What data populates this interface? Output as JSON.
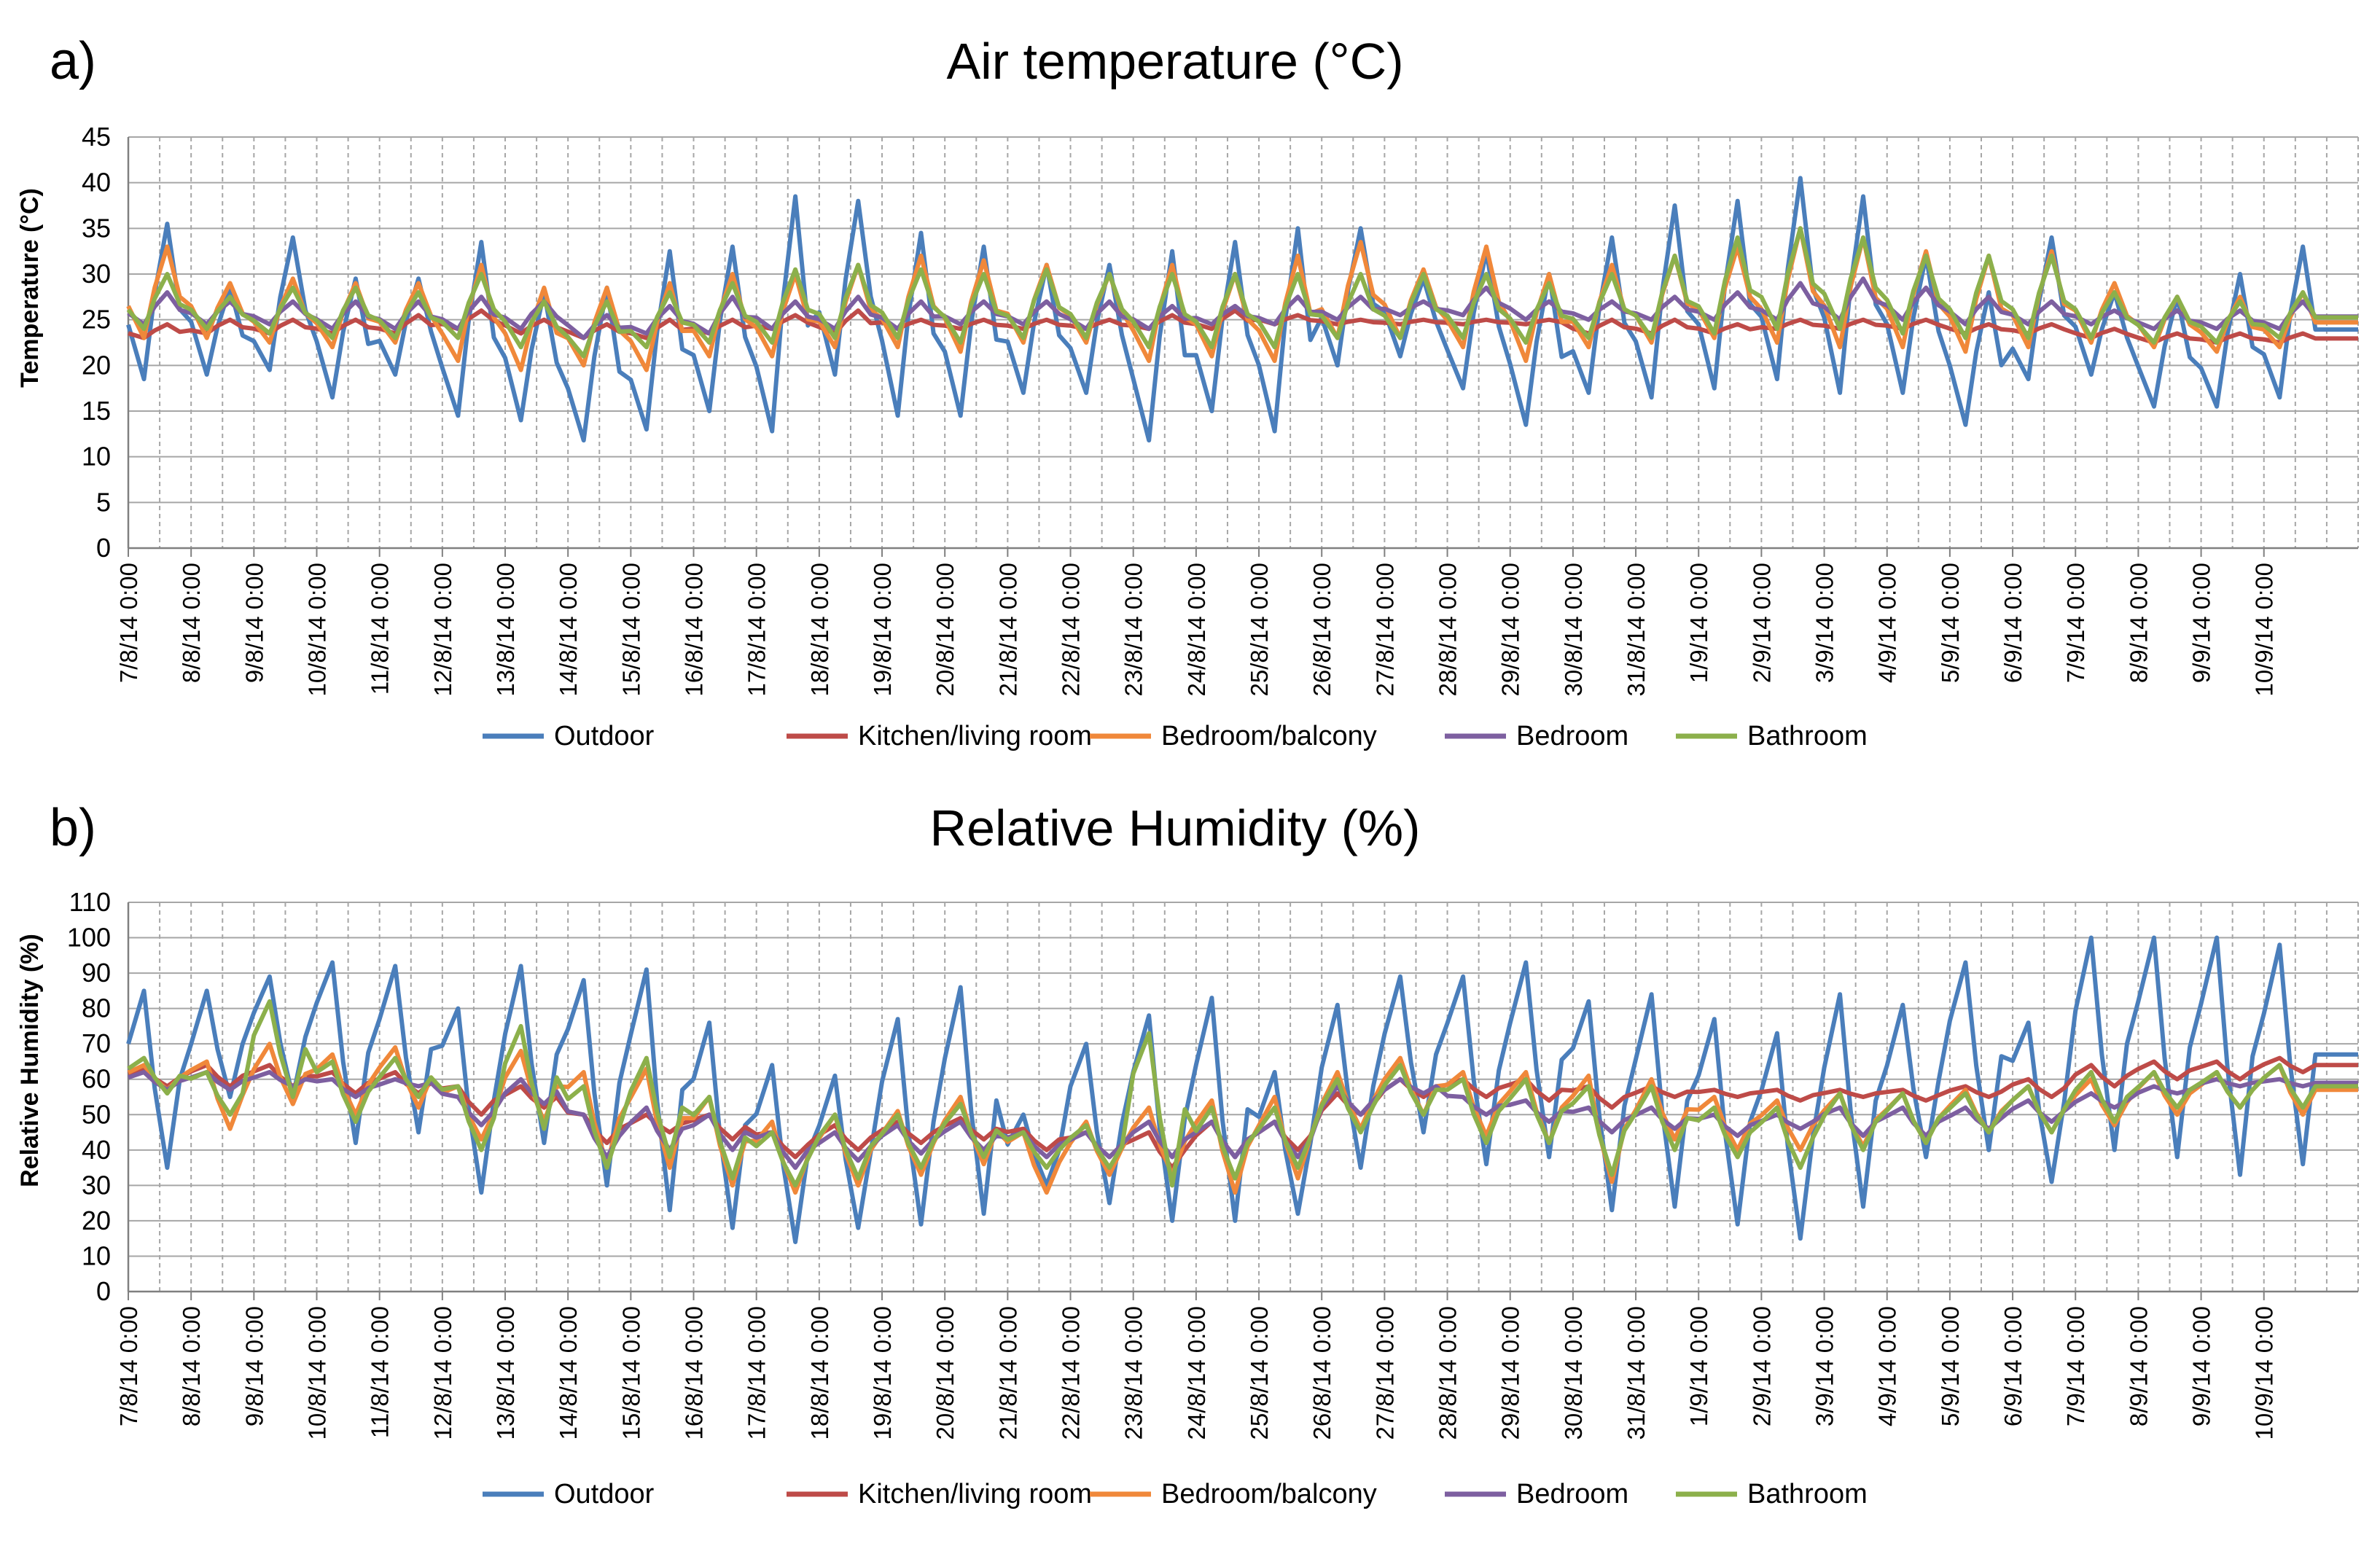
{
  "dates": [
    "7/8/14 0:00",
    "8/8/14 0:00",
    "9/8/14 0:00",
    "10/8/14 0:00",
    "11/8/14 0:00",
    "12/8/14 0:00",
    "13/8/14 0:00",
    "14/8/14 0:00",
    "15/8/14 0:00",
    "16/8/14 0:00",
    "17/8/14 0:00",
    "18/8/14 0:00",
    "19/8/14 0:00",
    "20/8/14 0:00",
    "21/8/14 0:00",
    "22/8/14 0:00",
    "23/8/14 0:00",
    "24/8/14 0:00",
    "25/8/14 0:00",
    "26/8/14 0:00",
    "27/8/14 0:00",
    "28/8/14 0:00",
    "29/8/14 0:00",
    "30/8/14 0:00",
    "31/8/14 0:00",
    "1/9/14 0:00",
    "2/9/14 0:00",
    "3/9/14 0:00",
    "4/9/14 0:00",
    "5/9/14 0:00",
    "6/9/14 0:00",
    "7/9/14 0:00",
    "8/9/14 0:00",
    "9/9/14 0:00",
    "10/9/14 0:00"
  ],
  "colors": {
    "Outdoor": "#4a7ebb",
    "Kitchen/living room": "#be4b48",
    "Bedroom/balcony": "#f0883a",
    "Bedroom": "#7d5fa0",
    "Bathroom": "#8cb04b",
    "grid": "#a6a6a6",
    "axis": "#808080"
  },
  "chart_data": [
    {
      "type": "line",
      "panel_label": "a)",
      "title": "Air temperature (°C)",
      "ylabel": "Temperature (°C)",
      "xlabel": "",
      "ylim": [
        0,
        45
      ],
      "ystep": 5,
      "grid": true,
      "legend": "bottom",
      "x_start": "7/8/14 0:00",
      "x_end": "10/9/14 12:00",
      "series_format": "daily [min, max] of diurnal cycle; min near 06:00, max near 15:00",
      "series": [
        {
          "name": "Outdoor",
          "daily_min": [
            18.5,
            19,
            19.5,
            16.5,
            19,
            14.5,
            14,
            11.8,
            13,
            15,
            12.8,
            19,
            14.5,
            14.5,
            17,
            17,
            11.8,
            15,
            12.8,
            20,
            21,
            17.5,
            13.5,
            17,
            16.5,
            17.5,
            18.5,
            17,
            17,
            13.5,
            18.5,
            19,
            15.5,
            15.5,
            16.5
          ],
          "daily_max": [
            35.5,
            28.5,
            34,
            29.5,
            29.5,
            33.5,
            28,
            28.5,
            32.5,
            33,
            38.5,
            38,
            34.5,
            33,
            31,
            31,
            32.5,
            33.5,
            35,
            35,
            29.5,
            32.5,
            30,
            34,
            37.5,
            38,
            40.5,
            38.5,
            32,
            28,
            34,
            28,
            27.5,
            30,
            33
          ]
        },
        {
          "name": "Kitchen/living room",
          "daily_min": [
            23,
            23.5,
            23.5,
            23.5,
            23.5,
            24,
            23.5,
            23,
            23,
            23.5,
            24,
            23.5,
            24,
            24,
            24,
            24,
            24,
            24,
            24.5,
            24.5,
            24.5,
            24.5,
            24.5,
            23.5,
            23.5,
            23.5,
            24,
            24,
            24,
            23.5,
            23.5,
            23,
            22.5,
            22.5,
            22.5
          ],
          "daily_max": [
            24.5,
            25,
            25,
            25,
            25.5,
            26,
            25,
            24.5,
            25,
            25,
            25.5,
            26,
            25,
            25,
            25,
            25,
            25.5,
            26,
            25.5,
            25,
            25,
            25,
            25,
            25,
            25,
            24.5,
            25,
            25,
            25,
            24.5,
            24.5,
            24,
            23.5,
            23.5,
            23.5
          ]
        },
        {
          "name": "Bedroom/balcony",
          "daily_min": [
            23,
            23,
            22.5,
            22,
            22.5,
            20.5,
            19.5,
            20,
            19.5,
            21,
            21,
            22,
            22,
            21.5,
            22.5,
            22.5,
            20.5,
            21,
            20.5,
            23,
            23,
            22,
            20.5,
            22,
            22.5,
            23,
            22.5,
            22,
            22,
            21.5,
            22,
            22.5,
            22,
            21.5,
            22
          ],
          "daily_max": [
            33,
            29,
            29.5,
            29,
            29,
            31,
            28.5,
            28.5,
            29,
            30,
            30,
            31,
            32,
            31.5,
            31,
            30,
            31,
            30,
            32,
            33.5,
            30.5,
            33,
            30,
            31,
            32,
            33,
            35,
            34,
            32.5,
            32,
            32.5,
            29,
            27.5,
            27.5,
            28
          ]
        },
        {
          "name": "Bedroom",
          "daily_min": [
            24.5,
            24.5,
            24.5,
            24,
            24,
            24,
            24,
            23,
            23.5,
            23.5,
            24,
            24,
            24,
            24.5,
            24.5,
            24,
            24,
            24.5,
            24.5,
            25,
            25.5,
            25.5,
            25,
            25,
            25,
            25,
            25,
            25,
            25,
            24.5,
            24.5,
            24.5,
            24,
            24,
            24
          ],
          "daily_max": [
            28,
            27,
            27,
            27,
            27,
            27.5,
            27,
            25.5,
            26.5,
            27.5,
            27,
            27.5,
            27,
            27,
            27,
            27,
            26.5,
            26.5,
            27.5,
            27.5,
            27,
            28.5,
            27,
            27,
            27.5,
            28,
            29,
            29.5,
            28.5,
            27.5,
            27,
            26,
            26,
            26,
            27
          ]
        },
        {
          "name": "Bathroom",
          "daily_min": [
            24,
            24,
            23.5,
            23,
            23,
            23,
            22,
            21,
            22,
            22.5,
            22.5,
            23,
            23,
            22.5,
            23,
            23,
            22,
            22,
            22,
            23,
            23,
            23,
            22.5,
            23,
            23,
            23.5,
            24,
            24,
            23.5,
            23,
            23,
            23,
            22.5,
            22.5,
            23
          ],
          "daily_max": [
            30,
            27.5,
            28.5,
            28.5,
            28,
            30,
            27,
            27,
            28,
            29,
            30.5,
            31,
            30.5,
            30,
            30.5,
            30,
            30,
            30,
            30,
            30,
            30,
            30,
            29,
            30,
            32,
            34,
            35,
            34,
            32,
            32,
            32,
            28,
            27.5,
            27,
            28
          ]
        }
      ]
    },
    {
      "type": "line",
      "panel_label": "b)",
      "title": "Relative Humidity (%)",
      "ylabel": "Relative Humidity (%)",
      "xlabel": "",
      "ylim": [
        0,
        110
      ],
      "ystep": 10,
      "grid": true,
      "legend": "bottom",
      "x_start": "7/8/14 0:00",
      "x_end": "10/9/14 12:00",
      "series_format": "daily [min, max] of diurnal cycle; max near 06:00, min near 15:00",
      "series": [
        {
          "name": "Outdoor",
          "daily_min": [
            35,
            55,
            55,
            42,
            45,
            28,
            42,
            30,
            23,
            18,
            14,
            18,
            19,
            22,
            30,
            25,
            20,
            20,
            22,
            35,
            45,
            36,
            38,
            23,
            24,
            19,
            15,
            24,
            38,
            40,
            31,
            40,
            38,
            33,
            36
          ],
          "daily_max": [
            85,
            85,
            89,
            93,
            92,
            80,
            92,
            88,
            91,
            76,
            64,
            61,
            77,
            86,
            50,
            70,
            78,
            83,
            62,
            81,
            89,
            89,
            93,
            82,
            84,
            77,
            73,
            84,
            81,
            93,
            76,
            100,
            100,
            100,
            98
          ]
        },
        {
          "name": "Kitchen/living room",
          "daily_min": [
            58,
            58,
            58,
            56,
            56,
            50,
            52,
            42,
            45,
            43,
            38,
            40,
            42,
            43,
            40,
            38,
            35,
            38,
            40,
            50,
            55,
            55,
            54,
            52,
            55,
            55,
            54,
            55,
            54,
            55,
            55,
            58,
            60,
            60,
            62
          ],
          "daily_max": [
            63,
            64,
            64,
            62,
            62,
            58,
            58,
            50,
            50,
            50,
            45,
            47,
            48,
            49,
            46,
            45,
            45,
            48,
            48,
            56,
            60,
            60,
            60,
            58,
            58,
            57,
            57,
            57,
            57,
            58,
            60,
            64,
            65,
            65,
            66
          ]
        },
        {
          "name": "Bedroom/balcony",
          "daily_min": [
            57,
            46,
            53,
            50,
            52,
            43,
            48,
            36,
            35,
            30,
            28,
            30,
            33,
            36,
            28,
            33,
            33,
            28,
            32,
            46,
            50,
            44,
            42,
            31,
            43,
            40,
            40,
            41,
            42,
            45,
            45,
            47,
            50,
            52,
            50
          ],
          "daily_max": [
            64,
            65,
            70,
            67,
            69,
            58,
            68,
            62,
            63,
            55,
            48,
            50,
            51,
            55,
            45,
            48,
            52,
            54,
            55,
            62,
            66,
            62,
            62,
            61,
            60,
            55,
            54,
            56,
            56,
            57,
            58,
            60,
            62,
            62,
            64
          ]
        },
        {
          "name": "Bedroom",
          "daily_min": [
            57,
            57,
            58,
            55,
            58,
            47,
            53,
            38,
            40,
            40,
            35,
            37,
            39,
            40,
            38,
            38,
            38,
            38,
            38,
            50,
            56,
            50,
            48,
            45,
            46,
            44,
            46,
            44,
            44,
            46,
            48,
            52,
            56,
            58,
            58
          ],
          "daily_max": [
            62,
            62,
            62,
            60,
            60,
            55,
            60,
            50,
            52,
            50,
            45,
            45,
            47,
            48,
            45,
            45,
            48,
            48,
            48,
            58,
            60,
            55,
            54,
            52,
            52,
            50,
            50,
            52,
            52,
            52,
            54,
            56,
            58,
            60,
            60
          ]
        },
        {
          "name": "Bathroom",
          "daily_min": [
            56,
            50,
            55,
            48,
            55,
            40,
            46,
            35,
            38,
            32,
            30,
            32,
            35,
            38,
            35,
            35,
            30,
            32,
            35,
            45,
            50,
            42,
            42,
            33,
            40,
            38,
            35,
            40,
            42,
            45,
            45,
            48,
            52,
            52,
            52
          ],
          "daily_max": [
            66,
            62,
            82,
            65,
            66,
            58,
            75,
            58,
            66,
            55,
            45,
            50,
            50,
            53,
            45,
            47,
            73,
            52,
            52,
            60,
            64,
            60,
            60,
            58,
            58,
            52,
            52,
            56,
            56,
            56,
            58,
            62,
            62,
            62,
            64
          ]
        }
      ]
    }
  ]
}
